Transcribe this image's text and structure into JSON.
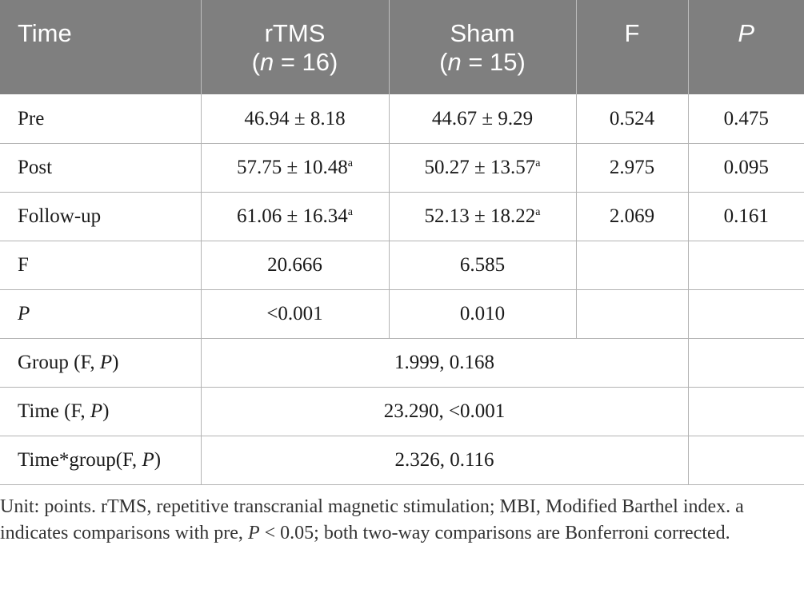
{
  "table": {
    "headers": [
      {
        "line1": "Time",
        "line2": ""
      },
      {
        "line1": "rTMS",
        "line2_pre": "(",
        "line2_n": "n",
        "line2_post": " = 16)"
      },
      {
        "line1": "Sham",
        "line2_pre": "(",
        "line2_n": "n",
        "line2_post": " = 15)"
      },
      {
        "line1": "F",
        "line2": ""
      },
      {
        "line1": "P",
        "line2": ""
      }
    ],
    "rows": [
      {
        "label": "Pre",
        "rtms": "46.94 ± 8.18",
        "rtms_sup": "",
        "sham": "44.67 ± 9.29",
        "sham_sup": "",
        "f": "0.524",
        "p": "0.475"
      },
      {
        "label": "Post",
        "rtms": "57.75 ± 10.48",
        "rtms_sup": "a",
        "sham": "50.27 ± 13.57",
        "sham_sup": "a",
        "f": "2.975",
        "p": "0.095"
      },
      {
        "label": "Follow-up",
        "rtms": "61.06 ± 16.34",
        "rtms_sup": "a",
        "sham": "52.13 ± 18.22",
        "sham_sup": "a",
        "f": "2.069",
        "p": "0.161"
      },
      {
        "label": "F",
        "rtms": "20.666",
        "sham": "6.585"
      },
      {
        "label": "P",
        "rtms": "<0.001",
        "sham": "0.010"
      }
    ],
    "effects": [
      {
        "label_pre": "Group (F, ",
        "label_p": "P",
        "label_post": ")",
        "value": "1.999, 0.168"
      },
      {
        "label_pre": "Time (F, ",
        "label_p": "P",
        "label_post": ")",
        "value": "23.290, <0.001"
      },
      {
        "label_pre": "Time*group(F, ",
        "label_p": "P",
        "label_post": ")",
        "value": "2.326, 0.116"
      }
    ]
  },
  "footnote": {
    "part1": "Unit: points. rTMS, repetitive transcranial magnetic stimulation; MBI, Modified Barthel index. a indicates comparisons with pre, ",
    "p": "P",
    "part2": " < 0.05; both two-way comparisons are Bonferroni corrected."
  }
}
